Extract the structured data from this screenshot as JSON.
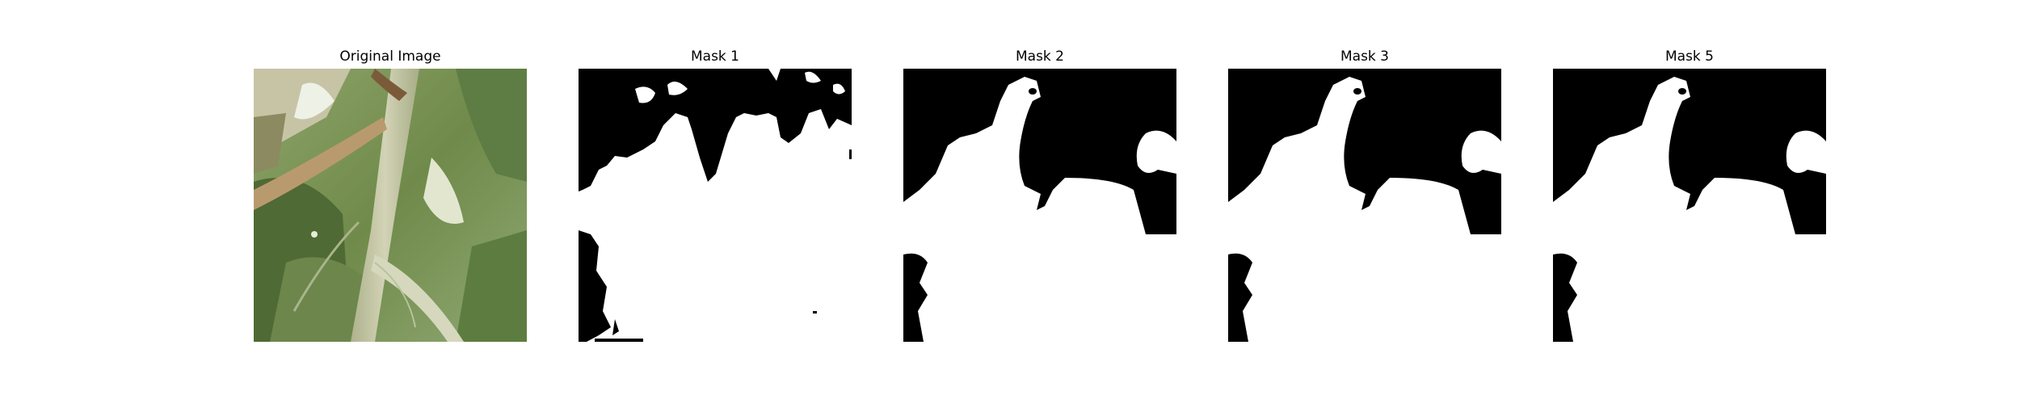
{
  "figure": {
    "panels": [
      {
        "title": "Original Image",
        "content": "leaf-photo"
      },
      {
        "title": "Mask 1",
        "content": "mask-noisy"
      },
      {
        "title": "Mask 2",
        "content": "mask-smooth"
      },
      {
        "title": "Mask 3",
        "content": "mask-smooth"
      },
      {
        "title": "Mask 5",
        "content": "mask-smooth"
      }
    ],
    "colors": {
      "mask_foreground": "#ffffff",
      "mask_background": "#000000",
      "leaf_dark": "#4f6a35",
      "leaf_mid": "#7f9a5a",
      "leaf_light": "#b7c79a",
      "stem": "#c9c9a8",
      "highlight": "#eef1e6"
    }
  }
}
